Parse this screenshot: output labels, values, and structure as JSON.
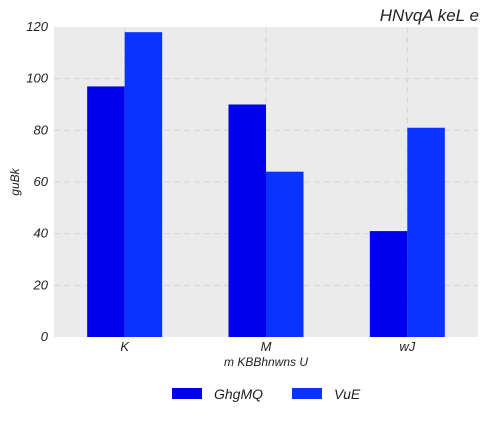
{
  "chart_data": {
    "type": "bar",
    "title": "HNvqA keL  e",
    "xlabel": "m KBBhnwns U",
    "ylabel": "guBk",
    "categories": [
      "K",
      "M",
      "wJ"
    ],
    "series": [
      {
        "name": "GhgMQ",
        "values": [
          97,
          90,
          41
        ],
        "color": "#0000ee"
      },
      {
        "name": "VuE",
        "values": [
          118,
          64,
          81
        ],
        "color": "#0a33ff"
      }
    ],
    "ylim": [
      0,
      120
    ],
    "yticks": [
      0,
      20,
      40,
      60,
      80,
      100,
      120
    ],
    "grid": true,
    "legend_position": "bottom-center",
    "background_color": "#ebebeb"
  }
}
